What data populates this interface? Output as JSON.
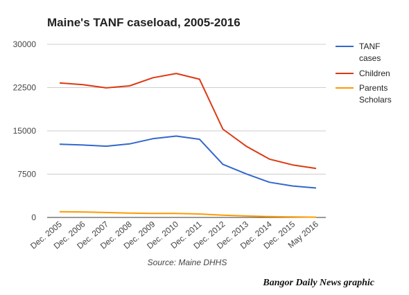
{
  "chart_data": {
    "type": "line",
    "title": "Maine's TANF caseload, 2005-2016",
    "categories": [
      "Dec. 2005",
      "Dec. 2006",
      "Dec. 2007",
      "Dec. 2008",
      "Dec. 2009",
      "Dec. 2010",
      "Dec. 2011",
      "Dec. 2012",
      "Dec. 2013",
      "Dec. 2014",
      "Dec. 2015",
      "May 2016"
    ],
    "ylim": [
      0,
      30000
    ],
    "yticks": [
      0,
      7500,
      15000,
      22500,
      30000
    ],
    "grid": true,
    "legend_position": "right",
    "series": [
      {
        "name": "TANF cases",
        "legend_lines": [
          "TANF",
          "cases"
        ],
        "color": "#3366cc",
        "values": [
          12700,
          12550,
          12350,
          12750,
          13650,
          14100,
          13550,
          9200,
          7550,
          6100,
          5450,
          5100
        ]
      },
      {
        "name": "Children",
        "legend_lines": [
          "Children"
        ],
        "color": "#dc3912",
        "values": [
          23300,
          23000,
          22450,
          22800,
          24200,
          24950,
          23950,
          15300,
          12350,
          10100,
          9100,
          8500
        ]
      },
      {
        "name": "Parents Scholars",
        "legend_lines": [
          "Parents",
          "Scholars"
        ],
        "color": "#ff9900",
        "values": [
          1000,
          950,
          850,
          750,
          700,
          700,
          600,
          400,
          250,
          150,
          100,
          50
        ]
      }
    ],
    "source": "Source: Maine DHHS"
  },
  "credit": "Bangor Daily News graphic"
}
